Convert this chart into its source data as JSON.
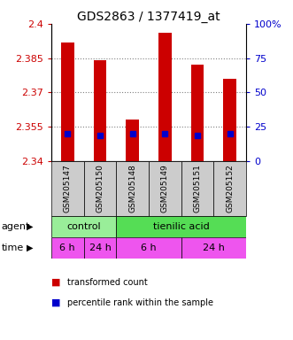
{
  "title": "GDS2863 / 1377419_at",
  "samples": [
    "GSM205147",
    "GSM205150",
    "GSM205148",
    "GSM205149",
    "GSM205151",
    "GSM205152"
  ],
  "bar_values": [
    2.392,
    2.384,
    2.358,
    2.396,
    2.382,
    2.376
  ],
  "bar_bottom": 2.34,
  "percentile_values": [
    2.352,
    2.351,
    2.352,
    2.352,
    2.351,
    2.352
  ],
  "ylim": [
    2.34,
    2.4
  ],
  "yticks": [
    2.34,
    2.355,
    2.37,
    2.385,
    2.4
  ],
  "ytick_labels": [
    "2.34",
    "2.355",
    "2.37",
    "2.385",
    "2.4"
  ],
  "y2ticks": [
    0,
    25,
    50,
    75,
    100
  ],
  "y2tick_labels": [
    "0",
    "25",
    "50",
    "75",
    "100%"
  ],
  "bar_color": "#cc0000",
  "percentile_color": "#0000cc",
  "agent_color_control": "#99ee99",
  "agent_color_tienilic": "#55dd55",
  "time_color": "#ee55ee",
  "agent_labels": [
    "control",
    "tienilic acid"
  ],
  "time_labels": [
    "6 h",
    "24 h",
    "6 h",
    "24 h"
  ],
  "ylabel_color": "#cc0000",
  "y2label_color": "#0000cc",
  "legend_red": "transformed count",
  "legend_blue": "percentile rank within the sample",
  "sample_box_color": "#cccccc"
}
